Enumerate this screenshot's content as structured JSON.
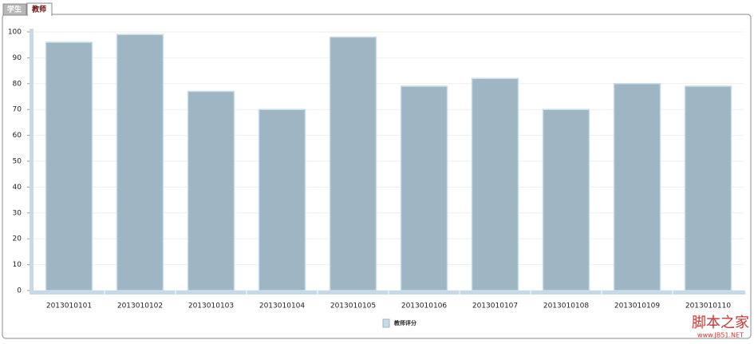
{
  "tabs": [
    "学生",
    "教师"
  ],
  "chart_data": {
    "type": "bar",
    "categories": [
      "2013010101",
      "2013010102",
      "2013010103",
      "2013010104",
      "2013010105",
      "2013010106",
      "2013010107",
      "2013010108",
      "2013010109",
      "2013010110"
    ],
    "series": [
      {
        "name": "教师评分",
        "color": "#9eb6c3",
        "values": [
          96,
          99,
          77,
          70,
          98,
          79,
          82,
          70,
          80,
          79
        ]
      }
    ],
    "ylim": [
      0,
      100
    ],
    "yticks": [
      0,
      10,
      20,
      30,
      40,
      50,
      60,
      70,
      80,
      90,
      100
    ],
    "grid": true,
    "legend": "bottom"
  },
  "watermark": {
    "title": "脚本之家",
    "url": "www.JB51.NET"
  }
}
